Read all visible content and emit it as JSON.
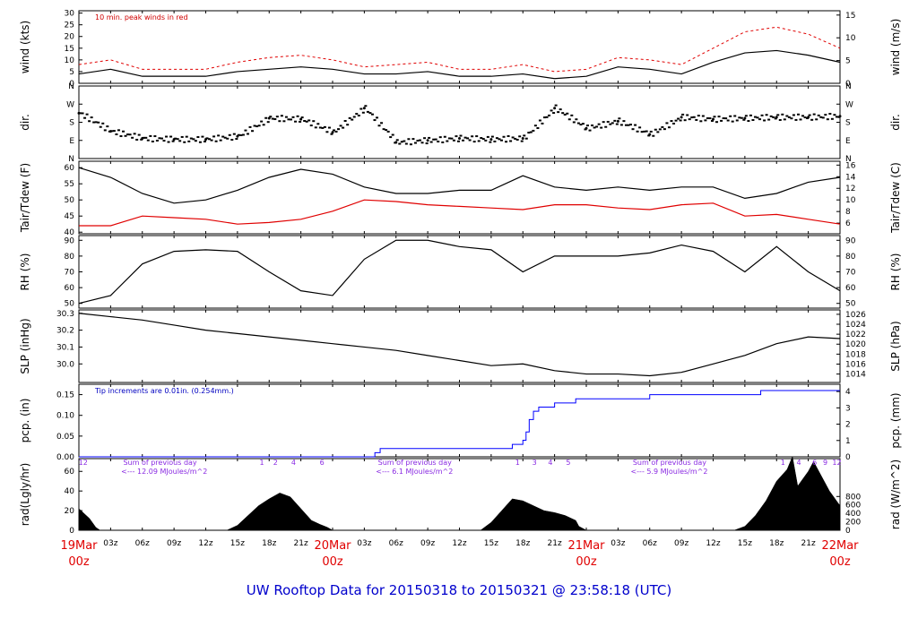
{
  "chart_data": {
    "type": "line",
    "footer": "UW Rooftop Data for 20150318  to  20150321 @ 23:58:18  (UTC)",
    "x_hours_total": 72,
    "time_ticks": [
      {
        "h": 0,
        "label": "19Mar",
        "sub": "00z",
        "major": true
      },
      {
        "h": 3,
        "label": "03z"
      },
      {
        "h": 6,
        "label": "06z"
      },
      {
        "h": 9,
        "label": "09z"
      },
      {
        "h": 12,
        "label": "12z"
      },
      {
        "h": 15,
        "label": "15z"
      },
      {
        "h": 18,
        "label": "18z"
      },
      {
        "h": 21,
        "label": "21z"
      },
      {
        "h": 24,
        "label": "20Mar",
        "sub": "00z",
        "major": true
      },
      {
        "h": 27,
        "label": "03z"
      },
      {
        "h": 30,
        "label": "06z"
      },
      {
        "h": 33,
        "label": "09z"
      },
      {
        "h": 36,
        "label": "12z"
      },
      {
        "h": 39,
        "label": "15z"
      },
      {
        "h": 42,
        "label": "18z"
      },
      {
        "h": 45,
        "label": "21z"
      },
      {
        "h": 48,
        "label": "21Mar",
        "sub": "00z",
        "major": true
      },
      {
        "h": 51,
        "label": "03z"
      },
      {
        "h": 54,
        "label": "06z"
      },
      {
        "h": 57,
        "label": "09z"
      },
      {
        "h": 60,
        "label": "12z"
      },
      {
        "h": 63,
        "label": "15z"
      },
      {
        "h": 66,
        "label": "18z"
      },
      {
        "h": 69,
        "label": "21z"
      },
      {
        "h": 72,
        "label": "22Mar",
        "sub": "00z",
        "major": true
      }
    ],
    "panels": [
      {
        "id": "wind",
        "ylabel_left": "wind (kts)",
        "ylabel_right": "wind (m/s)",
        "ylim": [
          0,
          31
        ],
        "left_ticks": [
          0,
          5,
          10,
          15,
          20,
          25,
          30
        ],
        "right_ticks": [
          {
            "v": 0,
            "label": "0"
          },
          {
            "v": 9.72,
            "label": "5"
          },
          {
            "v": 19.44,
            "label": "10"
          },
          {
            "v": 29.16,
            "label": "15"
          }
        ],
        "annotation": "10 min. peak winds in red",
        "series": [
          {
            "name": "wind speed (kts)",
            "color": "#000000",
            "x": [
              0,
              3,
              6,
              9,
              12,
              15,
              18,
              21,
              24,
              27,
              30,
              33,
              36,
              39,
              42,
              45,
              48,
              51,
              54,
              57,
              60,
              63,
              66,
              69,
              72
            ],
            "y": [
              4,
              6,
              3,
              3,
              3,
              5,
              6,
              7,
              6,
              4,
              4,
              5,
              3,
              3,
              4,
              2,
              3,
              7,
              6,
              4,
              9,
              13,
              14,
              12,
              9
            ]
          },
          {
            "name": "10 min peak (kts)",
            "color": "#e00000",
            "x": [
              0,
              3,
              6,
              9,
              12,
              15,
              18,
              21,
              24,
              27,
              30,
              33,
              36,
              39,
              42,
              45,
              48,
              51,
              54,
              57,
              60,
              63,
              66,
              69,
              72
            ],
            "y": [
              8,
              10,
              6,
              6,
              6,
              9,
              11,
              12,
              10,
              7,
              8,
              9,
              6,
              6,
              8,
              5,
              6,
              11,
              10,
              8,
              15,
              22,
              24,
              21,
              15
            ]
          }
        ]
      },
      {
        "id": "dir",
        "ylabel_left": "dir.",
        "ylabel_right": "dir.",
        "ylim": [
          0,
          360
        ],
        "left_ticks": [
          {
            "v": 0,
            "label": "N"
          },
          {
            "v": 90,
            "label": "E"
          },
          {
            "v": 180,
            "label": "S"
          },
          {
            "v": 270,
            "label": "W"
          },
          {
            "v": 360,
            "label": "N"
          }
        ],
        "right_ticks": [
          {
            "v": 0,
            "label": "N"
          },
          {
            "v": 90,
            "label": "E"
          },
          {
            "v": 180,
            "label": "S"
          },
          {
            "v": 270,
            "label": "W"
          },
          {
            "v": 360,
            "label": "N"
          }
        ],
        "series": [
          {
            "name": "wind direction (deg)",
            "color": "#000000",
            "x": [
              0,
              3,
              6,
              9,
              12,
              15,
              18,
              21,
              24,
              27,
              30,
              33,
              36,
              39,
              42,
              45,
              48,
              51,
              54,
              57,
              60,
              63,
              66,
              69,
              72
            ],
            "y": [
              225,
              135,
              100,
              95,
              95,
              110,
              200,
              195,
              130,
              250,
              80,
              90,
              100,
              95,
              100,
              250,
              150,
              185,
              120,
              205,
              195,
              200,
              205,
              205,
              210
            ]
          }
        ]
      },
      {
        "id": "temp",
        "ylabel_left": "Tair/Tdew (F)",
        "ylabel_right": "Tair/Tdew (C)",
        "ylim": [
          39.5,
          62
        ],
        "left_ticks": [
          40,
          45,
          50,
          55,
          60
        ],
        "right_ticks": [
          {
            "v": 42.8,
            "label": "6"
          },
          {
            "v": 46.4,
            "label": "8"
          },
          {
            "v": 50,
            "label": "10"
          },
          {
            "v": 53.6,
            "label": "12"
          },
          {
            "v": 57.2,
            "label": "14"
          },
          {
            "v": 60.8,
            "label": "16"
          }
        ],
        "series": [
          {
            "name": "Tair (F)",
            "color": "#000000",
            "x": [
              0,
              3,
              6,
              9,
              12,
              15,
              18,
              21,
              24,
              27,
              30,
              33,
              36,
              39,
              42,
              45,
              48,
              51,
              54,
              57,
              60,
              63,
              66,
              69,
              72
            ],
            "y": [
              60,
              57,
              52,
              49,
              50,
              53,
              57,
              59.5,
              58,
              54,
              52,
              52,
              53,
              53,
              57.5,
              54,
              53,
              54,
              53,
              54,
              54,
              50.5,
              52,
              55.5,
              57
            ]
          },
          {
            "name": "Tdew (F)",
            "color": "#e00000",
            "x": [
              0,
              3,
              6,
              9,
              12,
              15,
              18,
              21,
              24,
              27,
              30,
              33,
              36,
              39,
              42,
              45,
              48,
              51,
              54,
              57,
              60,
              63,
              66,
              69,
              72
            ],
            "y": [
              42,
              42,
              45,
              44.5,
              44,
              42.5,
              43,
              44,
              46.5,
              50,
              49.5,
              48.5,
              48,
              47.5,
              47,
              48.5,
              48.5,
              47.5,
              47,
              48.5,
              49,
              45,
              45.5,
              44,
              42.5
            ]
          }
        ]
      },
      {
        "id": "rh",
        "ylabel_left": "RH (%)",
        "ylabel_right": "RH (%)",
        "ylim": [
          47,
          93
        ],
        "left_ticks": [
          50,
          60,
          70,
          80,
          90
        ],
        "right_ticks": [
          {
            "v": 50,
            "label": "50"
          },
          {
            "v": 60,
            "label": "60"
          },
          {
            "v": 70,
            "label": "70"
          },
          {
            "v": 80,
            "label": "80"
          },
          {
            "v": 90,
            "label": "90"
          }
        ],
        "series": [
          {
            "name": "relative humidity (%)",
            "color": "#000000",
            "x": [
              0,
              3,
              6,
              9,
              12,
              15,
              18,
              21,
              24,
              27,
              30,
              33,
              36,
              39,
              42,
              45,
              48,
              51,
              54,
              57,
              60,
              63,
              66,
              69,
              72
            ],
            "y": [
              50,
              55,
              75,
              83,
              84,
              83,
              70,
              58,
              55,
              78,
              90,
              90,
              86,
              84,
              70,
              80,
              80,
              80,
              82,
              87,
              83,
              70,
              86,
              70,
              58
            ]
          }
        ]
      },
      {
        "id": "slp",
        "ylabel_left": "SLP (inHg)",
        "ylabel_right": "SLP (hPa)",
        "ylim": [
          29.89,
          30.32
        ],
        "left_ticks": [
          {
            "v": 30.0,
            "label": "30.0"
          },
          {
            "v": 30.1,
            "label": "30.1"
          },
          {
            "v": 30.2,
            "label": "30.2"
          },
          {
            "v": 30.3,
            "label": "30.3"
          }
        ],
        "right_ticks": [
          {
            "v": 29.94,
            "label": "1014"
          },
          {
            "v": 29.999,
            "label": "1016"
          },
          {
            "v": 30.058,
            "label": "1018"
          },
          {
            "v": 30.117,
            "label": "1020"
          },
          {
            "v": 30.176,
            "label": "1022"
          },
          {
            "v": 30.235,
            "label": "1024"
          },
          {
            "v": 30.294,
            "label": "1026"
          }
        ],
        "series": [
          {
            "name": "sea level pressure (inHg)",
            "color": "#000000",
            "x": [
              0,
              3,
              6,
              9,
              12,
              15,
              18,
              21,
              24,
              27,
              30,
              33,
              36,
              39,
              42,
              45,
              48,
              51,
              54,
              57,
              60,
              63,
              66,
              69,
              72
            ],
            "y": [
              30.3,
              30.28,
              30.26,
              30.23,
              30.2,
              30.18,
              30.16,
              30.14,
              30.12,
              30.1,
              30.08,
              30.05,
              30.02,
              29.99,
              30.0,
              29.96,
              29.94,
              29.94,
              29.93,
              29.95,
              30.0,
              30.05,
              30.12,
              30.16,
              30.15
            ]
          }
        ]
      },
      {
        "id": "pcp",
        "ylabel_left": "pcp. (in)",
        "ylabel_right": "pcp. (mm)",
        "ylim": [
          0,
          0.175
        ],
        "left_ticks": [
          {
            "v": 0,
            "label": "0.00"
          },
          {
            "v": 0.05,
            "label": "0.05"
          },
          {
            "v": 0.1,
            "label": "0.10"
          },
          {
            "v": 0.15,
            "label": "0.15"
          }
        ],
        "right_ticks": [
          {
            "v": 0,
            "label": "0"
          },
          {
            "v": 0.03937,
            "label": "1"
          },
          {
            "v": 0.07874,
            "label": "2"
          },
          {
            "v": 0.1181,
            "label": "3"
          },
          {
            "v": 0.1575,
            "label": "4"
          }
        ],
        "annotation": "Tip increments are 0.01in. (0.254mm.)",
        "series": [
          {
            "name": "cumulative precipitation (in)",
            "color": "#0000ff",
            "step": true,
            "x": [
              0,
              27.5,
              28,
              28.5,
              37,
              41,
              42,
              42.3,
              42.6,
              43,
              43.5,
              45,
              47,
              54,
              64.5,
              72
            ],
            "y": [
              0,
              0,
              0.01,
              0.02,
              0.02,
              0.03,
              0.04,
              0.06,
              0.09,
              0.11,
              0.12,
              0.13,
              0.14,
              0.15,
              0.16,
              0.16
            ]
          }
        ]
      },
      {
        "id": "rad",
        "ylabel_left": "rad(Lgly/hr)",
        "ylabel_right": "rad (W/m^2)",
        "ylim": [
          0,
          73
        ],
        "left_ticks": [
          0,
          20,
          40,
          60
        ],
        "right_ticks": [
          {
            "v": 0,
            "label": "0"
          },
          {
            "v": 8.6,
            "label": "200"
          },
          {
            "v": 17.2,
            "label": "400"
          },
          {
            "v": 25.8,
            "label": "600"
          },
          {
            "v": 34.4,
            "label": "800"
          }
        ],
        "annotations": [
          {
            "h": 2.5,
            "text": "Sum of previous day"
          },
          {
            "h": 2.3,
            "text": "<--- 12.09 MJoules/m^2"
          },
          {
            "h": 26.6,
            "text": "Sum of previous day"
          },
          {
            "h": 26.4,
            "text": "<--- 6.1 MJoules/m^2"
          },
          {
            "h": 50.7,
            "text": "Sum of previous day"
          },
          {
            "h": 50.5,
            "text": "<--- 5.9 MJoules/m^2"
          }
        ],
        "hour_marks": [
          {
            "h": 0.4,
            "label": "12"
          },
          {
            "h": 17.3,
            "label": "1"
          },
          {
            "h": 18.6,
            "label": "2"
          },
          {
            "h": 20.3,
            "label": "4"
          },
          {
            "h": 23.0,
            "label": "6"
          },
          {
            "h": 41.5,
            "label": "1"
          },
          {
            "h": 43.1,
            "label": "3"
          },
          {
            "h": 44.6,
            "label": "4"
          },
          {
            "h": 46.3,
            "label": "5"
          },
          {
            "h": 66.6,
            "label": "1"
          },
          {
            "h": 68.1,
            "label": "4"
          },
          {
            "h": 69.6,
            "label": "6"
          },
          {
            "h": 70.6,
            "label": "9"
          },
          {
            "h": 71.7,
            "label": "12"
          }
        ],
        "series": [
          {
            "name": "solar radiation (Lgly/hr)",
            "color": "#000000",
            "fill": true,
            "x": [
              0,
              1,
              1.6,
              2,
              14,
              15,
              16,
              17,
              18,
              19,
              20,
              21,
              22,
              22.8,
              23.5,
              24,
              38,
              39,
              40,
              41,
              42,
              43,
              44,
              45,
              46,
              47,
              47.3,
              48,
              62,
              63,
              64,
              65,
              66,
              67,
              67.5,
              68,
              69,
              69.5,
              70,
              71,
              72
            ],
            "y": [
              22,
              12,
              3,
              0,
              0,
              5,
              15,
              25,
              32,
              38,
              34,
              22,
              10,
              6,
              3,
              0,
              0,
              8,
              20,
              32,
              30,
              25,
              20,
              18,
              15,
              10,
              4,
              0,
              0,
              4,
              15,
              30,
              50,
              62,
              75,
              45,
              60,
              70,
              60,
              40,
              25
            ]
          }
        ]
      }
    ]
  }
}
